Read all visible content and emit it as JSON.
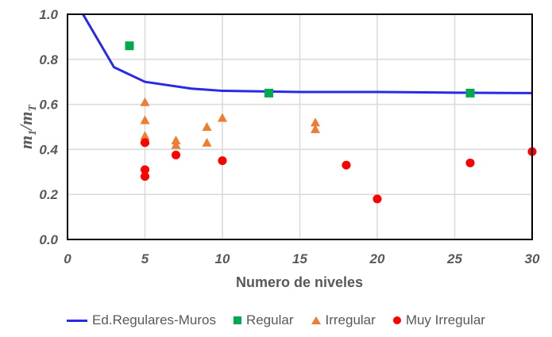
{
  "chart_data": {
    "type": "scatter",
    "title": "",
    "xlabel": "Numero de niveles",
    "ylabel": "m1/mT",
    "ylabel_main": "m",
    "ylabel_sub1": "1",
    "ylabel_sep": "/m",
    "ylabel_sub2": "T",
    "xlim": [
      0,
      30
    ],
    "ylim": [
      0.0,
      1.0
    ],
    "xticks": [
      "0",
      "5",
      "10",
      "15",
      "20",
      "25",
      "30"
    ],
    "yticks": [
      "0.0",
      "0.2",
      "0.4",
      "0.6",
      "0.8",
      "1.0"
    ],
    "grid": true,
    "legend_position": "bottom",
    "series": [
      {
        "name": "Ed.Regulares-Muros",
        "kind": "line",
        "color": "#2a2ae6",
        "x": [
          1,
          3,
          5,
          8,
          10,
          15,
          20,
          25,
          30
        ],
        "y": [
          1.0,
          0.765,
          0.7,
          0.67,
          0.66,
          0.655,
          0.655,
          0.652,
          0.65
        ]
      },
      {
        "name": "Regular",
        "kind": "square",
        "color": "#00a850",
        "x": [
          4,
          13,
          26
        ],
        "y": [
          0.86,
          0.65,
          0.65
        ]
      },
      {
        "name": "Irregular",
        "kind": "triangle",
        "color": "#ed7d31",
        "x": [
          5,
          5,
          5,
          5,
          7,
          7,
          9,
          9,
          10,
          16,
          16
        ],
        "y": [
          0.61,
          0.53,
          0.46,
          0.44,
          0.44,
          0.42,
          0.5,
          0.43,
          0.54,
          0.52,
          0.49
        ]
      },
      {
        "name": "Muy Irregular",
        "kind": "circle",
        "color": "#ff0000",
        "x": [
          5,
          5,
          5,
          7,
          10,
          18,
          20,
          26,
          30
        ],
        "y": [
          0.43,
          0.31,
          0.28,
          0.375,
          0.35,
          0.33,
          0.18,
          0.34,
          0.39
        ]
      }
    ]
  },
  "legend": {
    "items": [
      {
        "label": "Ed.Regulares-Muros",
        "color": "#2a2ae6"
      },
      {
        "label": "Regular",
        "color": "#00a850"
      },
      {
        "label": "Irregular",
        "color": "#ed7d31"
      },
      {
        "label": "Muy Irregular",
        "color": "#ff0000"
      }
    ]
  }
}
